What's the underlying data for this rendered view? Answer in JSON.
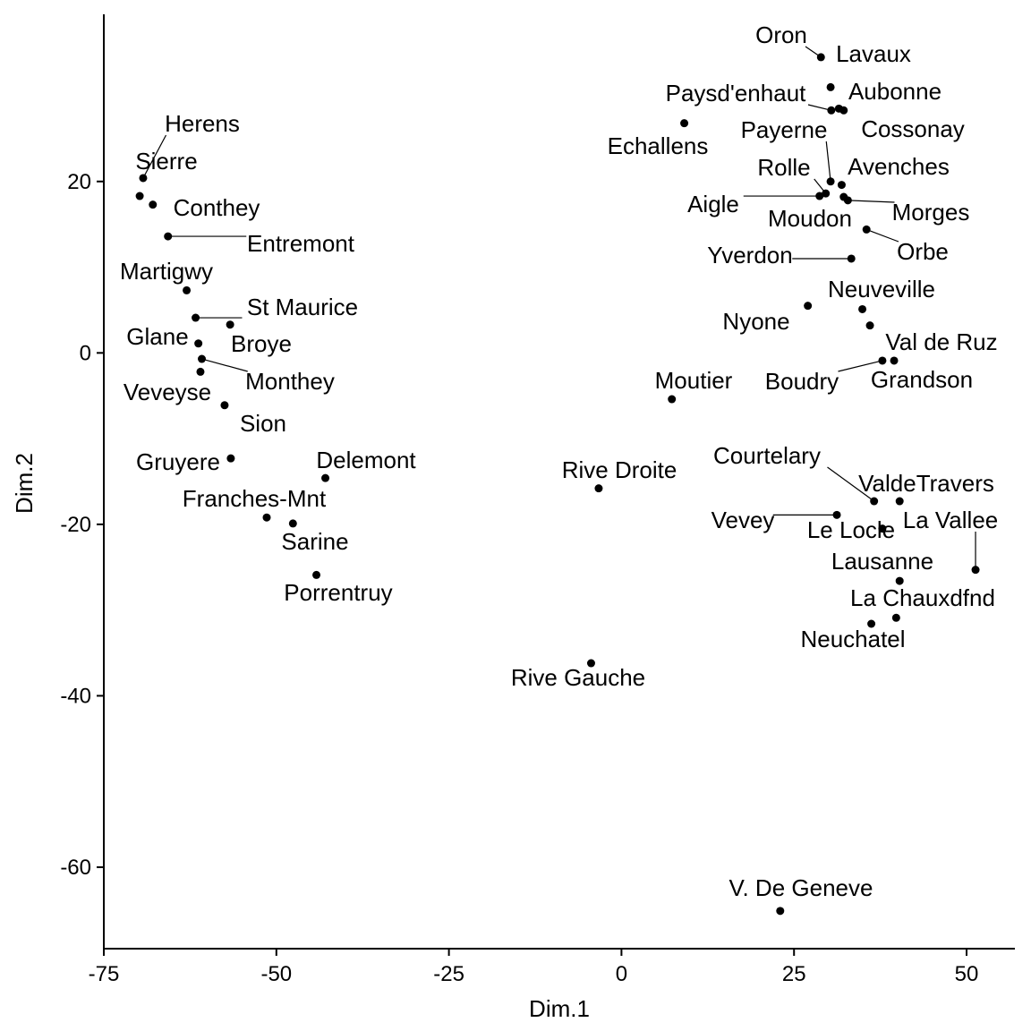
{
  "chart_data": {
    "type": "scatter",
    "xlabel": "Dim.1",
    "ylabel": "Dim.2",
    "xlim": [
      -75,
      57
    ],
    "ylim": [
      -69.5,
      39.5
    ],
    "xticks": [
      -75,
      -50,
      -25,
      0,
      25,
      50
    ],
    "yticks": [
      -60,
      -40,
      -20,
      0,
      20
    ],
    "x_tick_labels": [
      "-75",
      "-50",
      "-25",
      "0",
      "25",
      "50"
    ],
    "y_tick_labels": [
      "-60",
      "-40",
      "-20",
      "0",
      "20"
    ],
    "grid": false,
    "points": [
      {
        "label": "Oron",
        "x": 28.9,
        "y": 34.5
      },
      {
        "label": "Lavaux",
        "x": 30.3,
        "y": 31.0
      },
      {
        "label": "Paysd'enhaut",
        "x": 30.4,
        "y": 28.3
      },
      {
        "label": "Aubonne",
        "x": 31.5,
        "y": 28.5
      },
      {
        "label": "Cossonay",
        "x": 32.2,
        "y": 28.3
      },
      {
        "label": "Echallens",
        "x": 9.1,
        "y": 26.8
      },
      {
        "label": "Payerne",
        "x": 30.3,
        "y": 20.0
      },
      {
        "label": "Avenches",
        "x": 31.9,
        "y": 19.6
      },
      {
        "label": "Rolle",
        "x": 29.6,
        "y": 18.6
      },
      {
        "label": "Aigle",
        "x": 28.7,
        "y": 18.3
      },
      {
        "label": "Moudon",
        "x": 32.2,
        "y": 18.2
      },
      {
        "label": "Morges",
        "x": 32.8,
        "y": 17.8
      },
      {
        "label": "Orbe",
        "x": 35.5,
        "y": 14.4
      },
      {
        "label": "Yverdon",
        "x": 33.3,
        "y": 11.0
      },
      {
        "label": "Nyone",
        "x": 27.0,
        "y": 5.5
      },
      {
        "label": "Neuveville",
        "x": 34.9,
        "y": 5.1
      },
      {
        "label": "Val de Ruz",
        "x": 36.0,
        "y": 3.2
      },
      {
        "label": "Boudry",
        "x": 37.8,
        "y": -0.9
      },
      {
        "label": "Grandson",
        "x": 39.5,
        "y": -0.9
      },
      {
        "label": "Moutier",
        "x": 7.3,
        "y": -5.4
      },
      {
        "label": "Herens",
        "x": -69.3,
        "y": 20.4
      },
      {
        "label": "Sierre",
        "x": -69.8,
        "y": 18.3
      },
      {
        "label": "Conthey",
        "x": -67.9,
        "y": 17.3
      },
      {
        "label": "Entremont",
        "x": -65.7,
        "y": 13.6
      },
      {
        "label": "Martigwy",
        "x": -63.0,
        "y": 7.3
      },
      {
        "label": "St Maurice",
        "x": -61.7,
        "y": 4.1
      },
      {
        "label": "Broye",
        "x": -56.7,
        "y": 3.3
      },
      {
        "label": "Glane",
        "x": -61.3,
        "y": 1.1
      },
      {
        "label": "Monthey",
        "x": -60.8,
        "y": -0.7
      },
      {
        "label": "Veveyse",
        "x": -61.0,
        "y": -2.2
      },
      {
        "label": "Sion",
        "x": -57.5,
        "y": -6.1
      },
      {
        "label": "Gruyere",
        "x": -56.6,
        "y": -12.3
      },
      {
        "label": "Delemont",
        "x": -42.9,
        "y": -14.6
      },
      {
        "label": "Franches-Mnt",
        "x": -51.4,
        "y": -19.2
      },
      {
        "label": "Sarine",
        "x": -47.6,
        "y": -19.9
      },
      {
        "label": "Porrentruy",
        "x": -44.2,
        "y": -25.9
      },
      {
        "label": "Rive Droite",
        "x": -3.3,
        "y": -15.8
      },
      {
        "label": "Rive Gauche",
        "x": -4.4,
        "y": -36.2
      },
      {
        "label": "Courtelary",
        "x": 36.6,
        "y": -17.3
      },
      {
        "label": "ValdeTravers",
        "x": 40.3,
        "y": -17.3
      },
      {
        "label": "Vevey",
        "x": 31.2,
        "y": -18.9
      },
      {
        "label": "Le Locle",
        "x": 37.8,
        "y": -20.5
      },
      {
        "label": "La Vallee",
        "x": 51.3,
        "y": -25.3
      },
      {
        "label": "Lausanne",
        "x": 40.3,
        "y": -26.6
      },
      {
        "label": "La Chauxdfnd",
        "x": 39.8,
        "y": -30.9
      },
      {
        "label": "Neuchatel",
        "x": 36.2,
        "y": -31.6
      },
      {
        "label": "V. De Geneve",
        "x": 23.0,
        "y": -65.1
      }
    ]
  }
}
